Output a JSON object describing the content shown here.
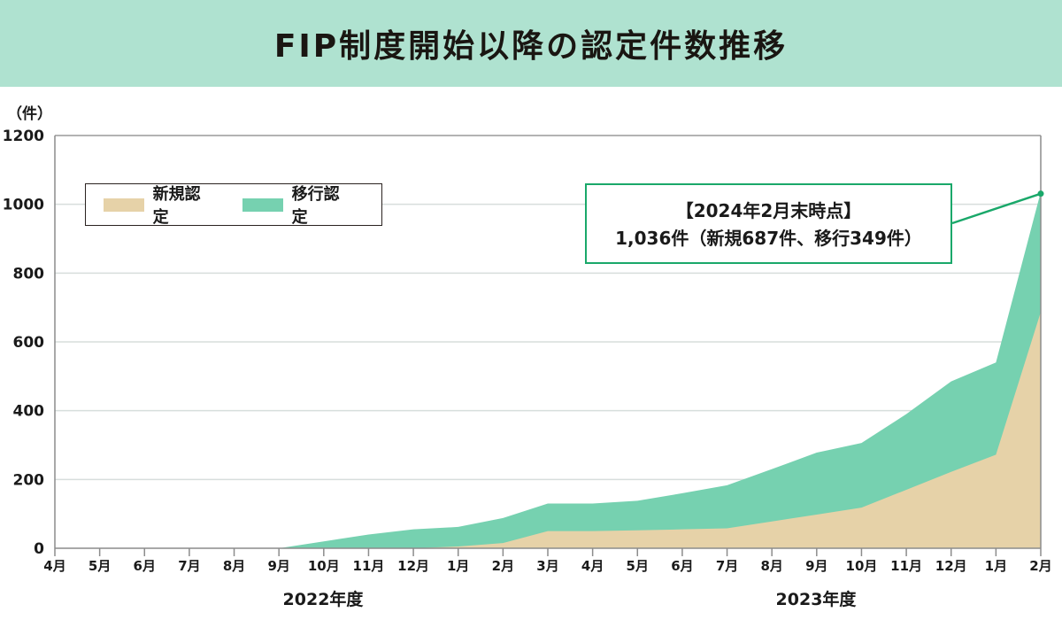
{
  "header": {
    "title": "FIP制度開始以降の認定件数推移"
  },
  "axis": {
    "y_unit": "（件）",
    "y_ticks": [
      "0",
      "200",
      "400",
      "600",
      "800",
      "1000",
      "1200"
    ],
    "x_ticks": [
      "4月",
      "5月",
      "6月",
      "7月",
      "8月",
      "9月",
      "10月",
      "11月",
      "12月",
      "1月",
      "2月",
      "3月",
      "4月",
      "5月",
      "6月",
      "7月",
      "8月",
      "9月",
      "10月",
      "11月",
      "12月",
      "1月",
      "2月"
    ],
    "fiscal_years": [
      "2022年度",
      "2023年度"
    ]
  },
  "legend": {
    "items": [
      {
        "label": "新規認定",
        "color": "#e6d2a8"
      },
      {
        "label": "移行認定",
        "color": "#76d1b0"
      }
    ]
  },
  "callout": {
    "line1": "【2024年2月末時点】",
    "line2": "1,036件（新規687件、移行349件）",
    "color": "#1aa86a"
  },
  "chart_data": {
    "type": "area",
    "stacked": true,
    "title": "FIP制度開始以降の認定件数推移",
    "xlabel": "",
    "ylabel": "（件）",
    "ylim": [
      0,
      1200
    ],
    "grid": true,
    "legend_position": "upper-left",
    "categories": [
      "2022-04",
      "2022-05",
      "2022-06",
      "2022-07",
      "2022-08",
      "2022-09",
      "2022-10",
      "2022-11",
      "2022-12",
      "2023-01",
      "2023-02",
      "2023-03",
      "2023-04",
      "2023-05",
      "2023-06",
      "2023-07",
      "2023-08",
      "2023-09",
      "2023-10",
      "2023-11",
      "2023-12",
      "2024-01",
      "2024-02"
    ],
    "series": [
      {
        "name": "新規認定",
        "color": "#e6d2a8",
        "values": [
          0,
          0,
          0,
          0,
          0,
          0,
          0,
          0,
          0,
          5,
          15,
          50,
          50,
          52,
          55,
          58,
          78,
          98,
          118,
          170,
          222,
          272,
          687
        ]
      },
      {
        "name": "移行認定",
        "color": "#76d1b0",
        "values": [
          0,
          0,
          0,
          0,
          0,
          0,
          20,
          40,
          55,
          57,
          73,
          80,
          80,
          86,
          105,
          125,
          152,
          180,
          188,
          220,
          263,
          268,
          349
        ]
      }
    ],
    "totals": [
      0,
      0,
      0,
      0,
      0,
      0,
      20,
      40,
      55,
      62,
      88,
      130,
      130,
      138,
      160,
      183,
      230,
      278,
      306,
      390,
      485,
      540,
      1036
    ],
    "annotations": [
      "【2024年2月末時点】",
      "1,036件（新規687件、移行349件）"
    ],
    "fiscal_year_groups": [
      {
        "label": "2022年度",
        "from": "2022-04",
        "to": "2023-03"
      },
      {
        "label": "2023年度",
        "from": "2023-04",
        "to": "2024-02"
      }
    ]
  }
}
